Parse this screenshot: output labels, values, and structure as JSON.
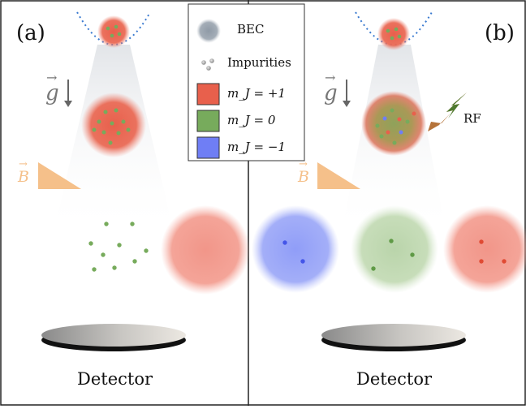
{
  "panels": {
    "a": {
      "label": "(a)",
      "detector_label": "Detector"
    },
    "b": {
      "label": "(b)",
      "detector_label": "Detector"
    }
  },
  "legend": {
    "bec": "BEC",
    "impurities": "Impurities",
    "mj_plus": "m_J = +1",
    "mj_zero": "m_J = 0",
    "mj_minus": "m_J = −1"
  },
  "annotations": {
    "gravity": "g",
    "field": "B",
    "rf": "RF"
  },
  "colors": {
    "mj_plus": "#e8604c",
    "mj_zero": "#77ab5c",
    "mj_minus": "#6f7ef5",
    "bec": "#8f9aa6",
    "field_wedge": "#f5c08a",
    "trap": "#3a7ad0",
    "rf_arrow": "#b5733a"
  }
}
